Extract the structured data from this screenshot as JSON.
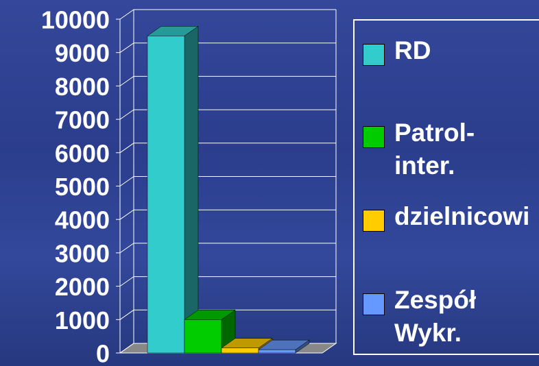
{
  "chart_data": {
    "type": "bar3d",
    "series": [
      {
        "name": "RD",
        "color": "#33cccc",
        "values": [
          9500
        ]
      },
      {
        "name": "Patrol-inter.",
        "color": "#00cc00",
        "values": [
          1000
        ]
      },
      {
        "name": "dzielnicowi",
        "color": "#ffcc00",
        "values": [
          150
        ]
      },
      {
        "name": "Zespół Wykr.",
        "color": "#6699ff",
        "values": [
          100
        ]
      }
    ],
    "ylim": [
      0,
      10000
    ],
    "yticks": [
      0,
      1000,
      2000,
      3000,
      4000,
      5000,
      6000,
      7000,
      8000,
      9000,
      10000
    ],
    "grid": true
  }
}
